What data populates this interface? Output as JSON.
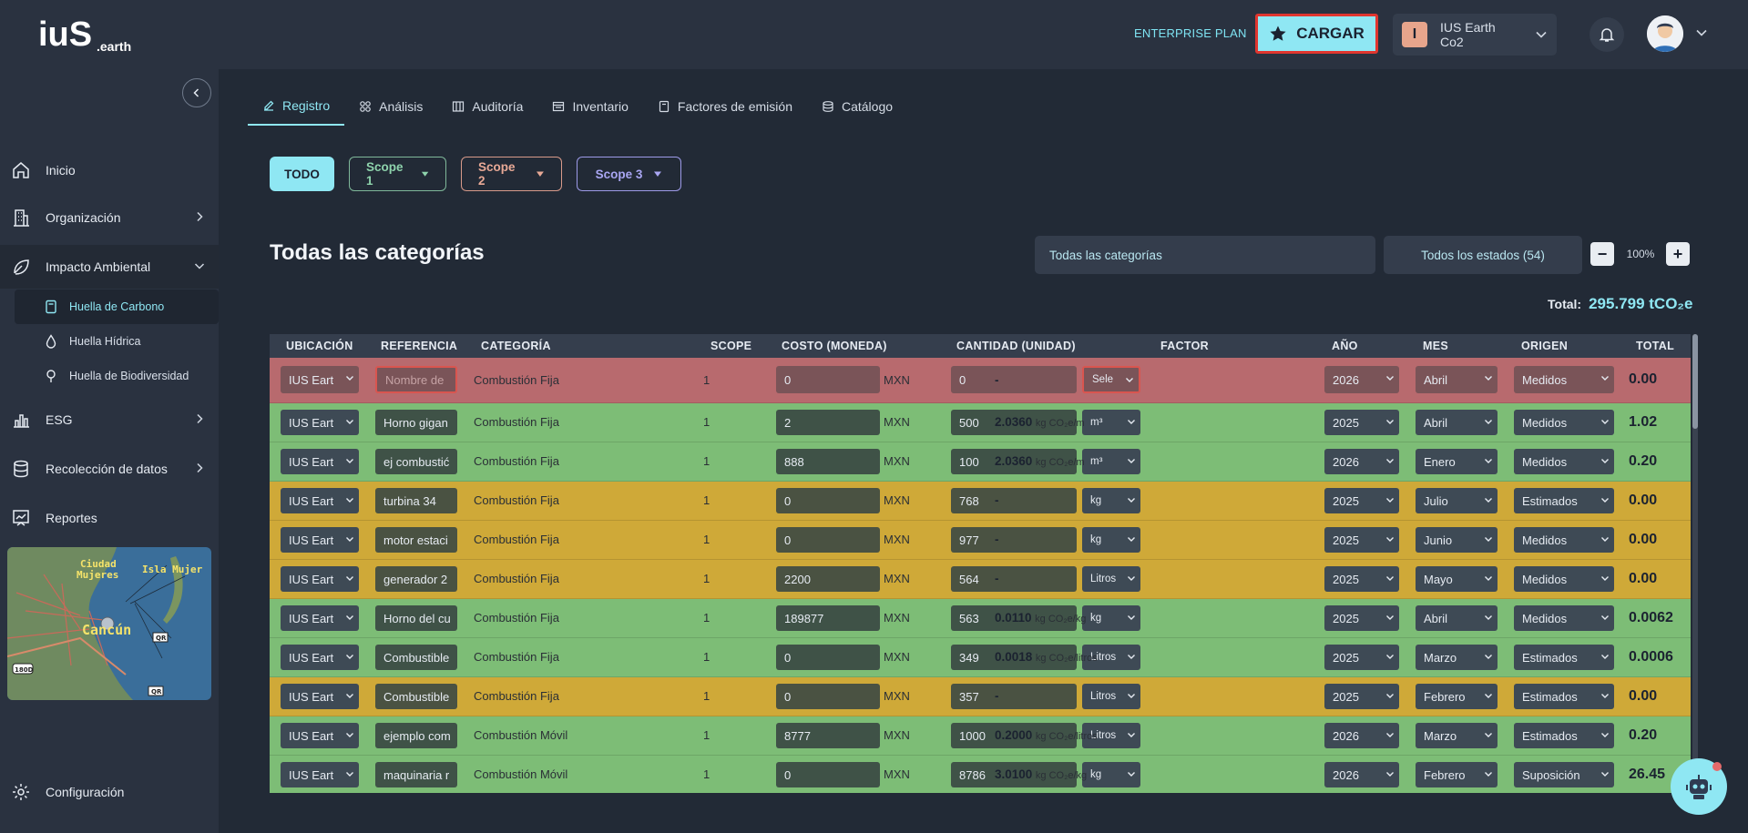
{
  "header": {
    "plan_label": "ENTERPRISE PLAN",
    "upload_label": "CARGAR",
    "company_initial": "I",
    "company_name": "IUS Earth Co2"
  },
  "sidebar": {
    "items": [
      {
        "label": "Inicio"
      },
      {
        "label": "Organización"
      },
      {
        "label": "Impacto Ambiental"
      },
      {
        "label": "ESG"
      },
      {
        "label": "Recolección de datos"
      },
      {
        "label": "Reportes"
      }
    ],
    "sub_items": [
      {
        "label": "Huella de Carbono"
      },
      {
        "label": "Huella Hídrica"
      },
      {
        "label": "Huella de Biodiversidad"
      }
    ],
    "config_label": "Configuración",
    "map": {
      "city": "Cancún",
      "label_a": "Ciudad",
      "label_b": "Mujeres",
      "label_c": "Isla Mujer",
      "road_a": "QR",
      "road_b": "QR",
      "road_c": "180D"
    }
  },
  "tabs": [
    {
      "label": "Registro"
    },
    {
      "label": "Análisis"
    },
    {
      "label": "Auditoría"
    },
    {
      "label": "Inventario"
    },
    {
      "label": "Factores de emisión"
    },
    {
      "label": "Catálogo"
    }
  ],
  "filters": {
    "todo": "TODO",
    "scope1": "Scope 1",
    "scope2": "Scope 2",
    "scope3": "Scope 3"
  },
  "section": {
    "title": "Todas las categorías",
    "category_select": "Todas las categorías",
    "status_select": "Todos los estados (54)",
    "zoom": "100%",
    "total_label": "Total:",
    "total_value": "295.799 tCO₂e"
  },
  "table": {
    "headers": {
      "ubicacion": "UBICACIÓN",
      "referencia": "REFERENCIA",
      "categoria": "CATEGORÍA",
      "scope": "SCOPE",
      "costo": "COSTO (MONEDA)",
      "cantidad": "CANTIDAD (UNIDAD)",
      "factor": "FACTOR",
      "anio": "AÑO",
      "mes": "MES",
      "origen": "ORIGEN",
      "total": "TOTAL"
    },
    "rows": [
      {
        "status": "red",
        "ubic": "IUS Eart",
        "ref": "Nombre de",
        "cat": "Combustión Fija",
        "scope": "1",
        "costo": "0",
        "moneda": "MXN",
        "cant": "0",
        "unidad": "Sele",
        "factor_val": "-",
        "factor_unit": "",
        "anio": "2026",
        "mes": "Abril",
        "origen": "Medidos",
        "total": "0.00"
      },
      {
        "status": "green",
        "ubic": "IUS Eart",
        "ref": "Horno gigan",
        "cat": "Combustión Fija",
        "scope": "1",
        "costo": "2",
        "moneda": "MXN",
        "cant": "500",
        "unidad": "m³",
        "factor_val": "2.0360",
        "factor_unit": "kg CO₂e/m",
        "anio": "2025",
        "mes": "Abril",
        "origen": "Medidos",
        "total": "1.02"
      },
      {
        "status": "green",
        "ubic": "IUS Eart",
        "ref": "ej combustić",
        "cat": "Combustión Fija",
        "scope": "1",
        "costo": "888",
        "moneda": "MXN",
        "cant": "100",
        "unidad": "m³",
        "factor_val": "2.0360",
        "factor_unit": "kg CO₂e/m",
        "anio": "2026",
        "mes": "Enero",
        "origen": "Medidos",
        "total": "0.20"
      },
      {
        "status": "yellow",
        "ubic": "IUS Eart",
        "ref": "turbina 34",
        "cat": "Combustión Fija",
        "scope": "1",
        "costo": "0",
        "moneda": "MXN",
        "cant": "768",
        "unidad": "kg",
        "factor_val": "-",
        "factor_unit": "",
        "anio": "2025",
        "mes": "Julio",
        "origen": "Estimados",
        "total": "0.00"
      },
      {
        "status": "yellow",
        "ubic": "IUS Eart",
        "ref": "motor estaci",
        "cat": "Combustión Fija",
        "scope": "1",
        "costo": "0",
        "moneda": "MXN",
        "cant": "977",
        "unidad": "kg",
        "factor_val": "-",
        "factor_unit": "",
        "anio": "2025",
        "mes": "Junio",
        "origen": "Medidos",
        "total": "0.00"
      },
      {
        "status": "yellow",
        "ubic": "IUS Eart",
        "ref": "generador 2",
        "cat": "Combustión Fija",
        "scope": "1",
        "costo": "2200",
        "moneda": "MXN",
        "cant": "564",
        "unidad": "Litros",
        "factor_val": "-",
        "factor_unit": "",
        "anio": "2025",
        "mes": "Mayo",
        "origen": "Medidos",
        "total": "0.00"
      },
      {
        "status": "green",
        "ubic": "IUS Eart",
        "ref": "Horno del cu",
        "cat": "Combustión Fija",
        "scope": "1",
        "costo": "189877",
        "moneda": "MXN",
        "cant": "563",
        "unidad": "kg",
        "factor_val": "0.0110",
        "factor_unit": "kg CO₂e/kg",
        "anio": "2025",
        "mes": "Abril",
        "origen": "Medidos",
        "total": "0.0062"
      },
      {
        "status": "green",
        "ubic": "IUS Eart",
        "ref": "Combustible",
        "cat": "Combustión Fija",
        "scope": "1",
        "costo": "0",
        "moneda": "MXN",
        "cant": "349",
        "unidad": "Litros",
        "factor_val": "0.0018",
        "factor_unit": "kg CO₂e/litros",
        "anio": "2025",
        "mes": "Marzo",
        "origen": "Estimados",
        "total": "0.0006"
      },
      {
        "status": "yellow",
        "ubic": "IUS Eart",
        "ref": "Combustible",
        "cat": "Combustión Fija",
        "scope": "1",
        "costo": "0",
        "moneda": "MXN",
        "cant": "357",
        "unidad": "Litros",
        "factor_val": "-",
        "factor_unit": "",
        "anio": "2025",
        "mes": "Febrero",
        "origen": "Estimados",
        "total": "0.00"
      },
      {
        "status": "green",
        "ubic": "IUS Eart",
        "ref": "ejemplo com",
        "cat": "Combustión Móvil",
        "scope": "1",
        "costo": "8777",
        "moneda": "MXN",
        "cant": "1000",
        "unidad": "Litros",
        "factor_val": "0.2000",
        "factor_unit": "kg CO₂e/litros",
        "anio": "2026",
        "mes": "Marzo",
        "origen": "Estimados",
        "total": "0.20"
      },
      {
        "status": "green",
        "ubic": "IUS Eart",
        "ref": "maquinaria r",
        "cat": "Combustión Móvil",
        "scope": "1",
        "costo": "0",
        "moneda": "MXN",
        "cant": "8786",
        "unidad": "kg",
        "factor_val": "3.0100",
        "factor_unit": "kg CO₂e/kg",
        "anio": "2026",
        "mes": "Febrero",
        "origen": "Suposición",
        "total": "26.45"
      }
    ]
  },
  "colors": {
    "accent": "#8fe7f3",
    "row_red": "#b86a6e",
    "row_green": "#7dbd76",
    "row_yellow": "#cfa938"
  }
}
